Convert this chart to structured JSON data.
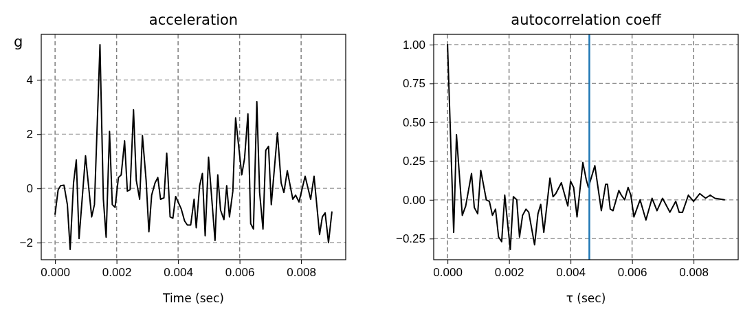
{
  "chart_data": [
    {
      "type": "line",
      "title": "acceleration",
      "xlabel": "Time (sec)",
      "ylabel": "g",
      "xlim": [
        -0.00045,
        0.00945
      ],
      "ylim": [
        -2.63,
        5.68
      ],
      "xticks": [
        {
          "value": 0,
          "label": "0.000"
        },
        {
          "value": 0.002,
          "label": "0.002"
        },
        {
          "value": 0.004,
          "label": "0.004"
        },
        {
          "value": 0.006,
          "label": "0.006"
        },
        {
          "value": 0.008,
          "label": "0.008"
        }
      ],
      "yticks": [
        -2,
        0,
        2,
        4
      ],
      "grid": true,
      "marker": "none",
      "line_style": "solid",
      "series": [
        {
          "color": "#000000",
          "x": [
            0,
            0.0001,
            0.00018,
            0.00029,
            0.0004,
            0.00049,
            0.0006,
            0.00069,
            0.00078,
            0.00099,
            0.00119,
            0.00128,
            0.00146,
            0.00157,
            0.00166,
            0.00177,
            0.00186,
            0.00195,
            0.00206,
            0.00215,
            0.00226,
            0.00235,
            0.00244,
            0.00255,
            0.00264,
            0.00275,
            0.00284,
            0.00296,
            0.00305,
            0.00314,
            0.00325,
            0.00334,
            0.00343,
            0.00354,
            0.00363,
            0.00374,
            0.00383,
            0.00392,
            0.0041,
            0.00421,
            0.0043,
            0.00441,
            0.00452,
            0.00459,
            0.0047,
            0.00479,
            0.00488,
            0.00499,
            0.0052,
            0.00529,
            0.00538,
            0.00549,
            0.00558,
            0.00567,
            0.00578,
            0.00587,
            0.00607,
            0.00616,
            0.00627,
            0.00636,
            0.00645,
            0.00656,
            0.00665,
            0.00676,
            0.00685,
            0.00694,
            0.00703,
            0.00723,
            0.00735,
            0.00744,
            0.00755,
            0.00773,
            0.00782,
            0.00793,
            0.00813,
            0.00831,
            0.00842,
            0.0086,
            0.00869,
            0.00878,
            0.00889,
            0.009
          ],
          "values": [
            -0.95,
            -0.05,
            0.1,
            0.12,
            -0.6,
            -2.25,
            0.2,
            1.05,
            -1.85,
            1.2,
            -1.05,
            -0.6,
            5.3,
            -0.4,
            -1.8,
            2.1,
            -0.6,
            -0.7,
            0.4,
            0.5,
            1.75,
            -0.1,
            -0.05,
            2.9,
            0.3,
            -0.4,
            1.95,
            0.3,
            -1.6,
            -0.25,
            0.2,
            0.4,
            -0.4,
            -0.35,
            1.3,
            -1.05,
            -1.1,
            -0.3,
            -0.75,
            -1.2,
            -1.35,
            -1.35,
            -0.4,
            -1.45,
            0.1,
            0.55,
            -1.75,
            1.15,
            -1.92,
            0.5,
            -0.8,
            -1.15,
            0.1,
            -1.05,
            -0.1,
            2.6,
            0.5,
            1.1,
            2.75,
            -1.3,
            -1.5,
            3.2,
            -0.15,
            -1.5,
            1.4,
            1.55,
            -0.6,
            2.05,
            0.2,
            -0.15,
            0.65,
            -0.4,
            -0.25,
            -0.5,
            0.45,
            -0.4,
            0.45,
            -1.7,
            -1.05,
            -0.9,
            -2.0,
            -0.87
          ]
        }
      ]
    },
    {
      "type": "line",
      "title": "autocorrelation coeff",
      "xlabel": "τ (sec)",
      "xlim": [
        -0.00045,
        0.00945
      ],
      "ylim": [
        -0.386,
        1.066
      ],
      "xticks": [
        {
          "value": 0,
          "label": "0.000"
        },
        {
          "value": 0.002,
          "label": "0.002"
        },
        {
          "value": 0.004,
          "label": "0.004"
        },
        {
          "value": 0.006,
          "label": "0.006"
        },
        {
          "value": 0.008,
          "label": "0.008"
        }
      ],
      "yticks": [
        {
          "value": -0.25,
          "label": "−0.25"
        },
        {
          "value": 0,
          "label": "0.00"
        },
        {
          "value": 0.25,
          "label": "0.25"
        },
        {
          "value": 0.5,
          "label": "0.50"
        },
        {
          "value": 0.75,
          "label": "0.75"
        },
        {
          "value": 1,
          "label": "1.00"
        }
      ],
      "grid": true,
      "marker": "none",
      "line_style": "solid",
      "ref_lines": [
        {
          "axis": "x",
          "value": 0.00461,
          "color": "#1f77b4"
        }
      ],
      "series": [
        {
          "color": "#000000",
          "x": [
            0,
            0.0002,
            0.00029,
            0.00048,
            0.00059,
            0.00078,
            0.00087,
            0.00098,
            0.00108,
            0.00126,
            0.00136,
            0.00146,
            0.00156,
            0.00166,
            0.00176,
            0.00186,
            0.00204,
            0.00214,
            0.00225,
            0.00234,
            0.00244,
            0.00255,
            0.00264,
            0.00283,
            0.00294,
            0.00303,
            0.00313,
            0.00333,
            0.00343,
            0.00352,
            0.0037,
            0.00391,
            0.004,
            0.0041,
            0.00421,
            0.0044,
            0.00451,
            0.00458,
            0.00479,
            0.005,
            0.00514,
            0.0052,
            0.00529,
            0.00538,
            0.00557,
            0.00565,
            0.00576,
            0.00587,
            0.00596,
            0.00606,
            0.00626,
            0.00645,
            0.00665,
            0.00681,
            0.00699,
            0.00723,
            0.00742,
            0.00753,
            0.00764,
            0.00783,
            0.008,
            0.0082,
            0.00839,
            0.00854,
            0.00869,
            0.009
          ],
          "values": [
            1.0,
            -0.21,
            0.42,
            -0.1,
            -0.04,
            0.17,
            -0.05,
            -0.09,
            0.19,
            0.0,
            -0.01,
            -0.1,
            -0.06,
            -0.24,
            -0.27,
            0.03,
            -0.32,
            0.02,
            0.0,
            -0.24,
            -0.1,
            -0.06,
            -0.08,
            -0.29,
            -0.09,
            -0.03,
            -0.21,
            0.14,
            0.02,
            0.04,
            0.11,
            -0.04,
            0.12,
            0.08,
            -0.11,
            0.24,
            0.13,
            0.08,
            0.22,
            -0.07,
            0.1,
            0.1,
            -0.06,
            -0.07,
            0.06,
            0.03,
            0.0,
            0.08,
            0.03,
            -0.11,
            0.0,
            -0.13,
            0.01,
            -0.07,
            0.01,
            -0.08,
            -0.01,
            -0.08,
            -0.08,
            0.03,
            -0.01,
            0.04,
            0.01,
            0.03,
            0.01,
            0.0
          ]
        }
      ]
    }
  ]
}
